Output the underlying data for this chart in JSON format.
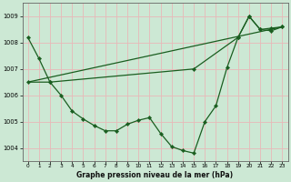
{
  "xlabel": "Graphe pression niveau de la mer (hPa)",
  "background_color": "#cce8d4",
  "grid_color": "#e8b8b8",
  "line_color": "#1a5e20",
  "ylim": [
    1003.5,
    1009.5
  ],
  "xlim": [
    -0.5,
    23.5
  ],
  "yticks": [
    1004,
    1005,
    1006,
    1007,
    1008,
    1009
  ],
  "xticks": [
    0,
    1,
    2,
    3,
    4,
    5,
    6,
    7,
    8,
    9,
    10,
    11,
    12,
    13,
    14,
    15,
    16,
    17,
    18,
    19,
    20,
    21,
    22,
    23
  ],
  "series1_x": [
    0,
    1,
    2,
    3,
    4,
    5,
    6,
    7,
    8,
    9,
    10,
    11,
    12,
    13,
    14,
    15,
    16,
    17,
    18,
    19,
    20,
    21,
    22,
    23
  ],
  "series1_y": [
    1008.2,
    1007.4,
    1006.5,
    1006.0,
    1005.4,
    1005.1,
    1004.85,
    1004.65,
    1004.65,
    1004.9,
    1005.05,
    1005.15,
    1004.55,
    1004.05,
    1003.9,
    1003.8,
    1005.0,
    1005.6,
    1007.05,
    1008.2,
    1009.0,
    1008.5,
    1008.55,
    1008.6
  ],
  "series2_x": [
    0,
    2,
    15,
    19,
    20,
    21,
    22,
    23
  ],
  "series2_y": [
    1006.5,
    1006.5,
    1007.0,
    1008.2,
    1009.0,
    1008.5,
    1008.45,
    1008.6
  ],
  "series3_x": [
    0,
    23
  ],
  "series3_y": [
    1006.5,
    1008.6
  ]
}
